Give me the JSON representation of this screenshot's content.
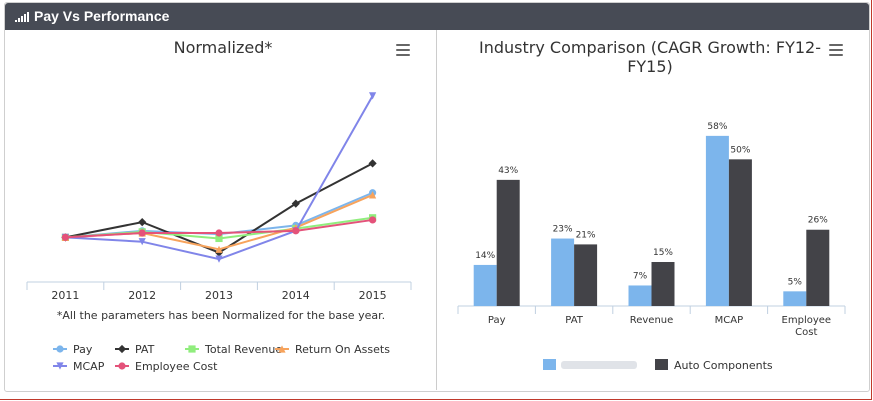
{
  "header": {
    "title": "Pay Vs Performance",
    "icon": "signal-bars-icon"
  },
  "chart_data": [
    {
      "type": "line",
      "title": "Normalized*",
      "categories": [
        "2011",
        "2012",
        "2013",
        "2014",
        "2015"
      ],
      "note": "*All the parameters has been Normalized for the base year.",
      "legend_position": "bottom",
      "series": [
        {
          "name": "Pay",
          "color": "#7cb5ec",
          "marker": "circle",
          "values": [
            100,
            106,
            103,
            111,
            141
          ]
        },
        {
          "name": "PAT",
          "color": "#333333",
          "marker": "diamond",
          "values": [
            100,
            114,
            86,
            131,
            168
          ]
        },
        {
          "name": "Total Revenue",
          "color": "#90ed7d",
          "marker": "square",
          "values": [
            100,
            105,
            99,
            108,
            118
          ]
        },
        {
          "name": "Return On Assets",
          "color": "#f7a35c",
          "marker": "triangle",
          "values": [
            100,
            104,
            89,
            109,
            139
          ]
        },
        {
          "name": "MCAP",
          "color": "#8085e9",
          "marker": "triangle-down",
          "values": [
            100,
            96,
            80,
            106,
            230
          ]
        },
        {
          "name": "Employee Cost",
          "color": "#e4527a",
          "marker": "circle",
          "values": [
            100,
            104,
            104,
            106,
            116
          ]
        }
      ]
    },
    {
      "type": "bar",
      "title": "Industry Comparison (CAGR Growth: FY12-FY15)",
      "title_lines": [
        "Industry Comparison (CAGR Growth: FY12-",
        "FY15)"
      ],
      "categories": [
        "Pay",
        "PAT",
        "Revenue",
        "MCAP",
        "Employee Cost"
      ],
      "ylim": [
        0,
        60
      ],
      "legend_position": "bottom",
      "series": [
        {
          "name": "",
          "color": "#7cb5ec",
          "values": [
            14,
            23,
            7,
            58,
            5
          ],
          "labels": [
            "14%",
            "23%",
            "7%",
            "58%",
            "5%"
          ]
        },
        {
          "name": "Auto Components",
          "color": "#434348",
          "values": [
            43,
            21,
            15,
            50,
            26
          ],
          "labels": [
            "43%",
            "21%",
            "15%",
            "50%",
            "26%"
          ]
        }
      ]
    }
  ]
}
